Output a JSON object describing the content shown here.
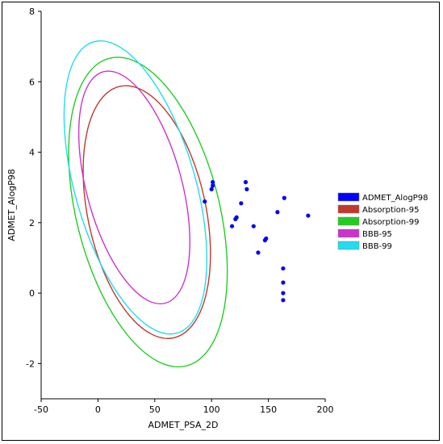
{
  "chart_data": {
    "type": "scatter",
    "title": "",
    "xlabel": "ADMET_PSA_2D",
    "ylabel": "ADMET_AlogP98",
    "xlim": [
      -50,
      200
    ],
    "ylim": [
      -3,
      8
    ],
    "xticks": [
      -50,
      0,
      50,
      100,
      150,
      200
    ],
    "yticks": [
      -2,
      0,
      2,
      4,
      6,
      8
    ],
    "xtick_labels": [
      "-50",
      "0",
      "50",
      "100",
      "150",
      "200"
    ],
    "ytick_labels": [
      "-2",
      "0",
      "2",
      "4",
      "6",
      "8"
    ],
    "grid": false,
    "legend_position": "right",
    "legend": [
      "ADMET_AlogP98",
      "Absorption-95",
      "Absorption-99",
      "BBB-95",
      "BBB-99"
    ],
    "points": {
      "name": "ADMET_AlogP98",
      "color": "#0000ff",
      "x": [
        94,
        100,
        101,
        101,
        118,
        121,
        122,
        126,
        130,
        131,
        137,
        141,
        147,
        148,
        158,
        164,
        163,
        163,
        163,
        163,
        185
      ],
      "y": [
        2.6,
        2.95,
        3.05,
        3.15,
        1.9,
        2.1,
        2.15,
        2.55,
        3.15,
        2.95,
        1.9,
        1.15,
        1.5,
        1.55,
        2.3,
        2.7,
        0.7,
        0.3,
        0.0,
        -0.2,
        2.2
      ]
    },
    "ellipses": [
      {
        "name": "Absorption-95",
        "color": "#c0392b",
        "center": [
          43,
          2.3
        ],
        "semi_major": 3.65,
        "semi_minor": 52,
        "tilt_deg": 12
      },
      {
        "name": "Absorption-99",
        "color": "#22cc22",
        "center": [
          44,
          2.3
        ],
        "semi_major": 4.5,
        "semi_minor": 63,
        "tilt_deg": 14
      },
      {
        "name": "BBB-95",
        "color": "#cc33cc",
        "center": [
          32,
          3.0
        ],
        "semi_major": 3.4,
        "semi_minor": 42,
        "tilt_deg": 15
      },
      {
        "name": "BBB-99",
        "color": "#22ddee",
        "center": [
          33,
          3.0
        ],
        "semi_major": 4.3,
        "semi_minor": 53,
        "tilt_deg": 16
      }
    ]
  }
}
